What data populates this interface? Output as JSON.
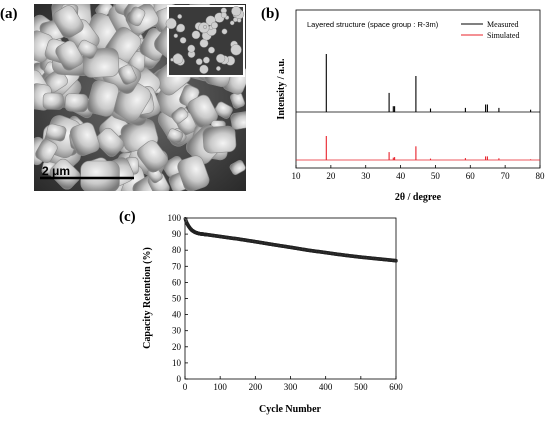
{
  "panels": {
    "a": {
      "label": "(a)",
      "scale_bar": "2 μm"
    },
    "b": {
      "label": "(b)"
    },
    "c": {
      "label": "(c)"
    }
  },
  "colors": {
    "measured": "#000000",
    "simulated": "#e8202a",
    "sem_dark": "#2a2a2a",
    "sem_light": "#e6e6e6"
  },
  "chart_data": [
    {
      "type": "line",
      "panel": "b",
      "annotation": "Layered structure (space group : R-3m)",
      "xlabel": "2θ / degree",
      "ylabel": "Intensity / a.u.",
      "xlim": [
        10,
        80
      ],
      "xticks": [
        10,
        20,
        30,
        40,
        50,
        60,
        70,
        80
      ],
      "legend_position": "top-right",
      "series": [
        {
          "name": "Measured",
          "color": "#000000",
          "peaks": [
            [
              18.7,
              1.0
            ],
            [
              36.7,
              0.33
            ],
            [
              37.9,
              0.1
            ],
            [
              38.3,
              0.1
            ],
            [
              44.4,
              0.62
            ],
            [
              48.6,
              0.06
            ],
            [
              58.6,
              0.07
            ],
            [
              64.4,
              0.13
            ],
            [
              64.9,
              0.13
            ],
            [
              68.2,
              0.07
            ],
            [
              77.3,
              0.04
            ]
          ]
        },
        {
          "name": "Simulated",
          "color": "#e8202a",
          "peaks": [
            [
              18.7,
              1.0
            ],
            [
              36.7,
              0.33
            ],
            [
              37.9,
              0.1
            ],
            [
              38.3,
              0.12
            ],
            [
              44.4,
              0.57
            ],
            [
              48.6,
              0.06
            ],
            [
              58.6,
              0.08
            ],
            [
              64.4,
              0.15
            ],
            [
              64.9,
              0.15
            ],
            [
              68.2,
              0.07
            ],
            [
              77.3,
              0.03
            ]
          ]
        }
      ]
    },
    {
      "type": "scatter",
      "panel": "c",
      "xlabel": "Cycle Number",
      "ylabel": "Capacity Retention (%)",
      "xlim": [
        0,
        600
      ],
      "ylim": [
        0,
        100
      ],
      "xticks": [
        0,
        100,
        200,
        300,
        400,
        500,
        600
      ],
      "yticks": [
        0,
        10,
        20,
        30,
        40,
        50,
        60,
        70,
        80,
        90,
        100
      ],
      "x": [
        1,
        3,
        6,
        10,
        15,
        20,
        30,
        40,
        50,
        75,
        100,
        150,
        200,
        250,
        300,
        350,
        400,
        450,
        500,
        550,
        600
      ],
      "y": [
        99.5,
        98,
        96.5,
        95,
        93.5,
        92.3,
        91,
        90.3,
        90,
        89.3,
        88.5,
        87,
        85.3,
        83.5,
        81.8,
        80,
        78.5,
        77,
        75.7,
        74.6,
        73.5
      ]
    }
  ]
}
